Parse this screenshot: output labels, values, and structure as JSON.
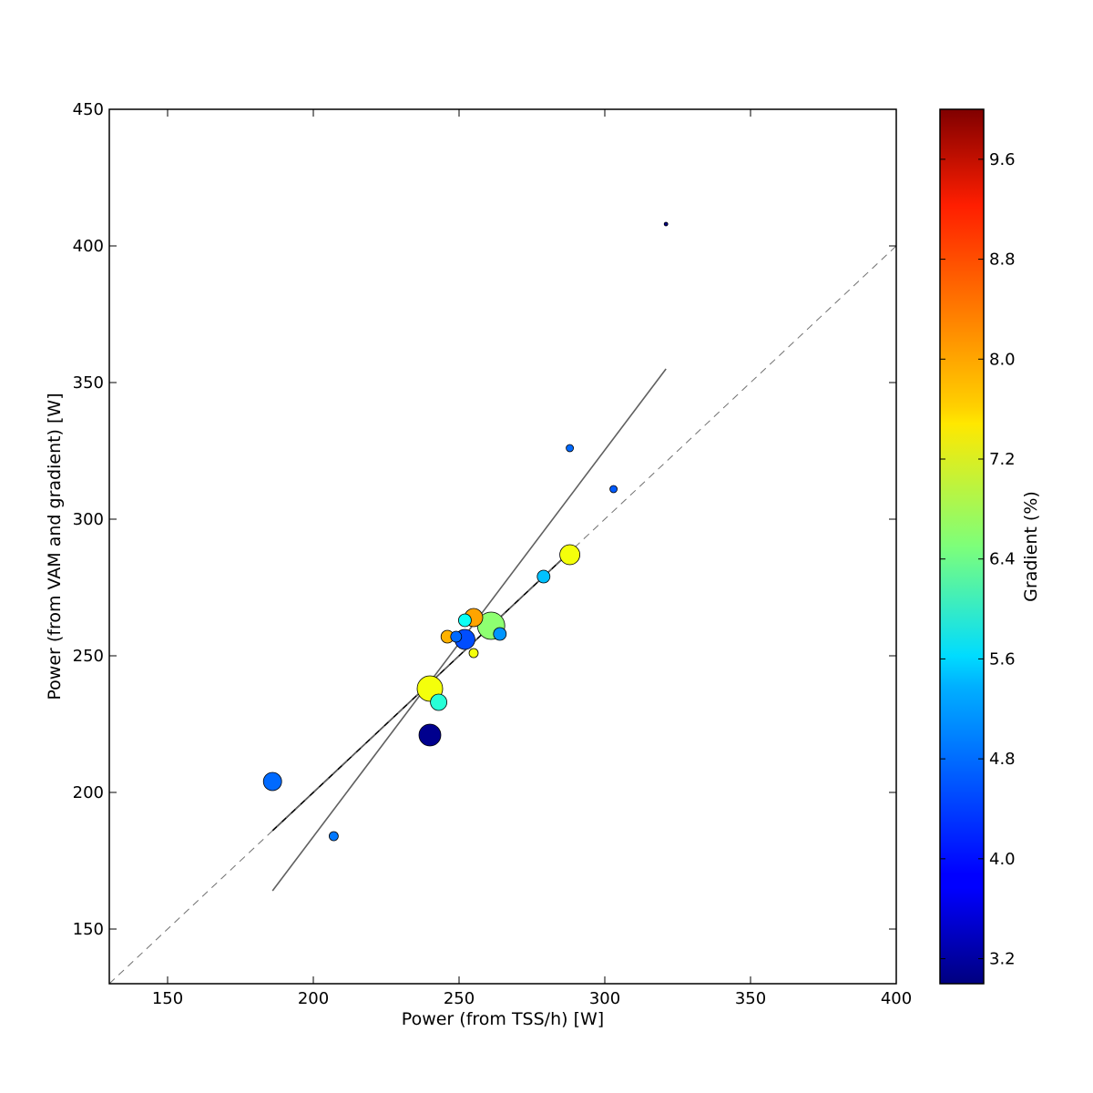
{
  "chart_data": {
    "type": "scatter",
    "title": "",
    "xlabel": "Power (from TSS/h) [W]",
    "ylabel": "Power (from VAM and gradient) [W]",
    "xlim": [
      130,
      400
    ],
    "ylim": [
      130,
      450
    ],
    "xticks": [
      150,
      200,
      250,
      300,
      350,
      400
    ],
    "yticks": [
      150,
      200,
      250,
      300,
      350,
      400,
      450
    ],
    "grid": false,
    "colorbar": {
      "label": "Gradient (%)",
      "range": [
        3.0,
        10.0
      ],
      "ticks": [
        3.2,
        4.0,
        4.8,
        5.6,
        6.4,
        7.2,
        8.0,
        8.8,
        9.6
      ],
      "tick_labels": [
        "3.2",
        "4.0",
        "4.8",
        "5.6",
        "6.4",
        "7.2",
        "8.0",
        "8.8",
        "9.6"
      ],
      "colormap": "jet"
    },
    "points": [
      {
        "x": 186,
        "y": 204,
        "gradient": 4.6,
        "size": 10
      },
      {
        "x": 207,
        "y": 184,
        "gradient": 4.7,
        "size": 5
      },
      {
        "x": 240,
        "y": 238,
        "gradient": 7.3,
        "size": 14
      },
      {
        "x": 243,
        "y": 233,
        "gradient": 5.9,
        "size": 9
      },
      {
        "x": 240,
        "y": 221,
        "gradient": 3.1,
        "size": 12
      },
      {
        "x": 246,
        "y": 257,
        "gradient": 7.9,
        "size": 7
      },
      {
        "x": 249,
        "y": 257,
        "gradient": 4.6,
        "size": 6
      },
      {
        "x": 252,
        "y": 263,
        "gradient": 5.7,
        "size": 7
      },
      {
        "x": 252,
        "y": 256,
        "gradient": 4.4,
        "size": 11
      },
      {
        "x": 255,
        "y": 264,
        "gradient": 8.0,
        "size": 10
      },
      {
        "x": 255,
        "y": 251,
        "gradient": 7.3,
        "size": 5
      },
      {
        "x": 261,
        "y": 261,
        "gradient": 6.6,
        "size": 15
      },
      {
        "x": 264,
        "y": 258,
        "gradient": 4.9,
        "size": 7
      },
      {
        "x": 279,
        "y": 279,
        "gradient": 5.2,
        "size": 7
      },
      {
        "x": 288,
        "y": 287,
        "gradient": 7.3,
        "size": 11
      },
      {
        "x": 288,
        "y": 326,
        "gradient": 4.6,
        "size": 4
      },
      {
        "x": 303,
        "y": 311,
        "gradient": 4.5,
        "size": 4
      },
      {
        "x": 321,
        "y": 408,
        "gradient": 3.0,
        "size": 2
      }
    ],
    "lines": [
      {
        "name": "fit-black",
        "color": "#000000",
        "style": "solid",
        "points": [
          [
            186,
            186
          ],
          [
            288,
            288
          ]
        ]
      },
      {
        "name": "fit-grey",
        "color": "#606060",
        "style": "solid",
        "points": [
          [
            186,
            164
          ],
          [
            321,
            355
          ]
        ]
      },
      {
        "name": "identity",
        "color": "#707070",
        "style": "dashed",
        "points": [
          [
            130,
            130
          ],
          [
            400,
            400
          ]
        ]
      }
    ]
  }
}
